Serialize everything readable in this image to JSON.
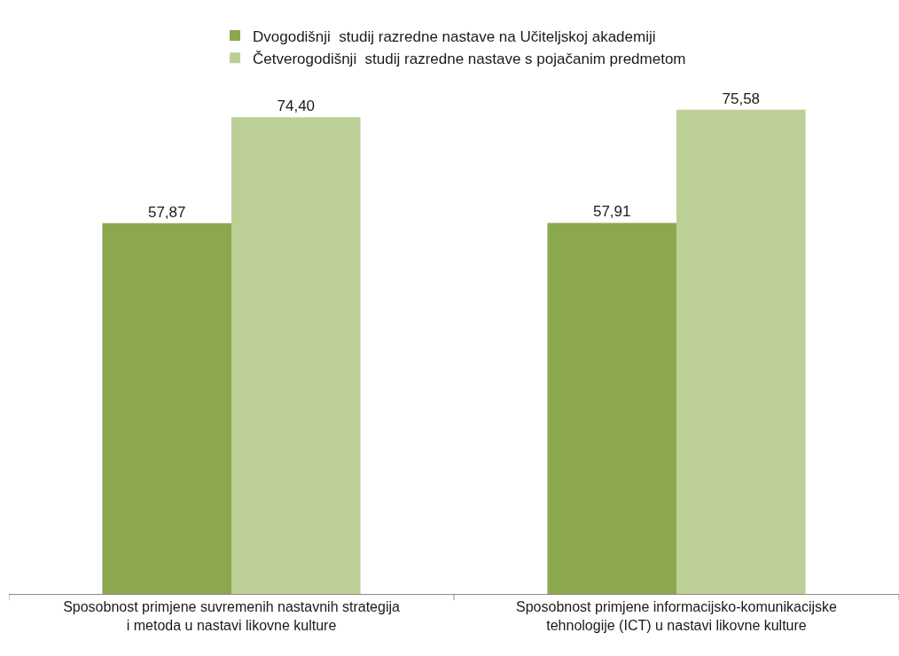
{
  "chart_data": {
    "type": "bar",
    "categories": [
      "Sposobnost primjene suvremenih nastavnih strategija i metoda u nastavi likovne kulture",
      "Sposobnost primjene informacijsko-komunikacijske tehnologije (ICT) u nastavi likovne kulture"
    ],
    "series": [
      {
        "name": "Dvogodišnji  studij razredne nastave na Učiteljskoj akademiji",
        "color": "#8ba84f",
        "values": [
          57.87,
          57.91
        ],
        "value_labels": [
          "57,87",
          "57,91"
        ]
      },
      {
        "name": "Četverogodišnji  studij razredne nastave s pojačanim predmetom",
        "color": "#bbcf96",
        "values": [
          74.4,
          75.58
        ],
        "value_labels": [
          "74,40",
          "75,58"
        ]
      }
    ],
    "legend": "top",
    "tick_labels": "x"
  }
}
